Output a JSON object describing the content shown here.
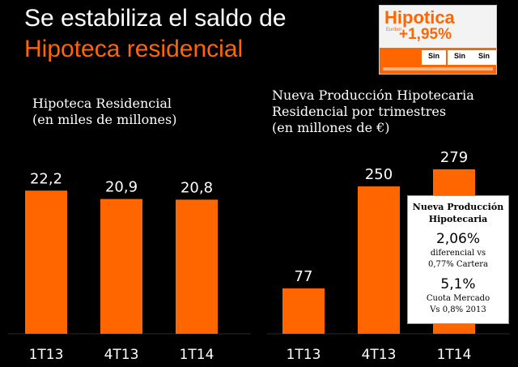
{
  "title": {
    "line1": "Se estabiliza el saldo de",
    "line2": "Hipoteca residencial"
  },
  "promo": {
    "title": "Hipotica",
    "sub1": "Euribor",
    "sub2": "",
    "rate": "+1,95%",
    "sin": [
      "Sin",
      "Sin",
      "Sin"
    ]
  },
  "colors": {
    "accent": "#ff6600",
    "background": "#000000",
    "text": "#ffffff"
  },
  "chart_data": [
    {
      "type": "bar",
      "title": "Hipoteca Residencial",
      "subtitle": "(en miles de millones)",
      "categories": [
        "1T13",
        "4T13",
        "1T14"
      ],
      "values": [
        22.2,
        20.9,
        20.8
      ],
      "value_labels": [
        "22,2",
        "20,9",
        "20,8"
      ],
      "ylim": [
        0,
        25
      ],
      "grid": false
    },
    {
      "type": "bar",
      "title": "Nueva Producción Hipotecaria",
      "subtitle": "Residencial por trimestres",
      "subtitle2": "(en millones de €)",
      "categories": [
        "1T13",
        "4T13",
        "1T14"
      ],
      "values": [
        77,
        250,
        279
      ],
      "value_labels": [
        "77",
        "250",
        "279"
      ],
      "ylim": [
        0,
        279
      ],
      "grid": false
    }
  ],
  "info_box": {
    "heading1": "Nueva Producción",
    "heading2": "Hipotecaria",
    "stat1": "2,06%",
    "stat1_note1": "diferencial vs",
    "stat1_note2": "0,77% Cartera",
    "stat2": "5,1%",
    "stat2_note1": "Cuota Mercado",
    "stat2_note2": "Vs  0,8% 2013"
  }
}
